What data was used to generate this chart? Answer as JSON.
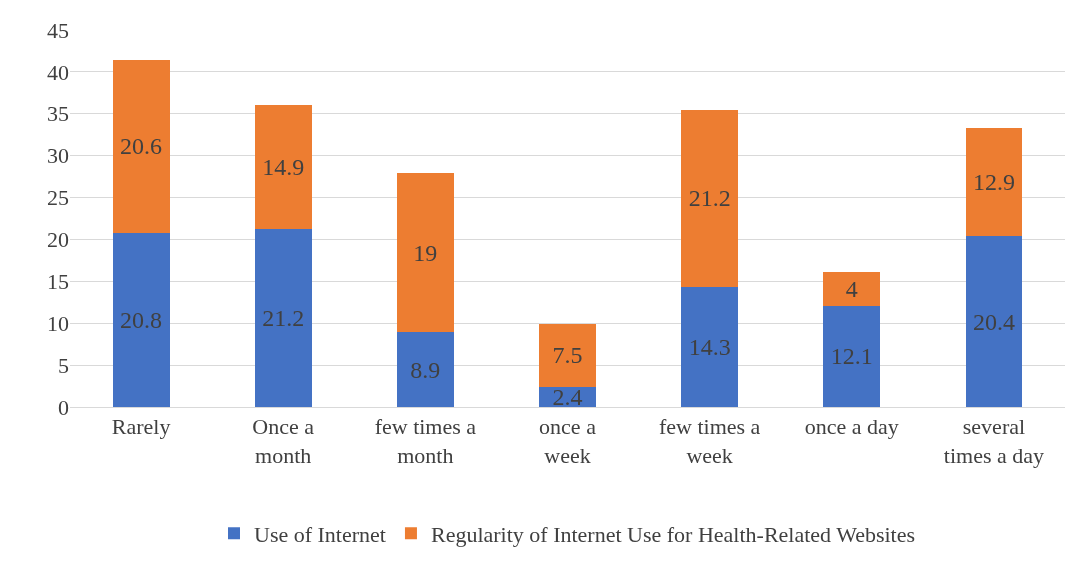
{
  "chart_data": {
    "type": "bar",
    "stacked": true,
    "categories": [
      "Rarely",
      "Once a month",
      "few times a month",
      "once a week",
      "few times a week",
      "once a day",
      "several times a day"
    ],
    "series": [
      {
        "name": "Use of Internet",
        "color": "#4472c4",
        "values": [
          20.8,
          21.2,
          8.9,
          2.4,
          14.3,
          12.1,
          20.4
        ]
      },
      {
        "name": "Regularity of Internet Use for Health-Related Websites",
        "color": "#ed7d31",
        "values": [
          20.6,
          14.9,
          19,
          7.5,
          21.2,
          4,
          12.9
        ]
      }
    ],
    "ylim": [
      0,
      45
    ],
    "yticks": [
      0,
      5,
      10,
      15,
      20,
      25,
      30,
      35,
      40,
      45
    ],
    "grid": "y",
    "legend": "bottom",
    "data_labels": true
  }
}
